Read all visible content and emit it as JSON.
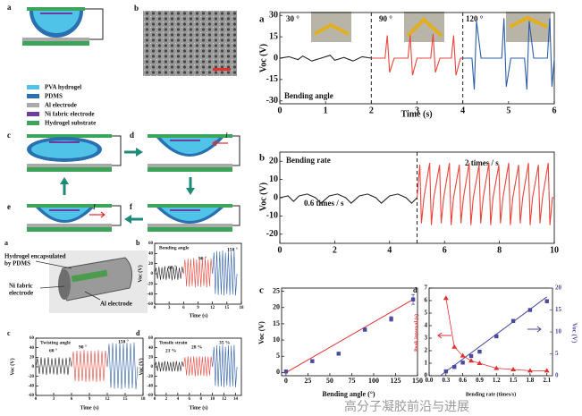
{
  "diagram": {
    "panel_labels": [
      "a",
      "b",
      "c",
      "d",
      "e",
      "f"
    ],
    "legend": [
      "PVA hydrogel",
      "PDMS",
      "Al electrode",
      "Ni fabric electrode",
      "Hydrogel substrate"
    ],
    "current_labels": [
      "I",
      "I"
    ]
  },
  "device": {
    "panel_label": "a",
    "encapsulation": [
      "Hydrogel encapsulated",
      "by PDMS"
    ],
    "ni_label": [
      "Ni fabric",
      "electrode"
    ],
    "al_label": "Al electrode"
  },
  "watermark": "高分子凝胶前沿与进展",
  "chart_data": [
    {
      "type": "line",
      "panel_label": "a",
      "ylabel": "Voc (V)",
      "xlabel": "Time (s)",
      "notes": [
        "30 °",
        "90 °",
        "120 °",
        "Bending angle"
      ],
      "xlim": [
        0,
        6
      ],
      "ylim": [
        -32,
        32
      ],
      "xticks": [
        0,
        1,
        2,
        3,
        4,
        5,
        6
      ],
      "yticks": [
        30,
        15,
        0,
        -15,
        -30
      ],
      "dividers": [
        2,
        4
      ],
      "series": [
        {
          "color": "#222222",
          "x": [
            0,
            0.2,
            0.4,
            0.5,
            0.7,
            0.9,
            1.1,
            1.2,
            1.4,
            1.6,
            1.8,
            2
          ],
          "values": [
            0,
            1,
            -1,
            1.5,
            -2,
            0,
            2,
            -1.5,
            0.5,
            -2,
            1,
            0
          ]
        },
        {
          "color": "#e8453c",
          "x": [
            2,
            2.3,
            2.35,
            2.4,
            2.5,
            2.8,
            2.85,
            2.9,
            3,
            3.3,
            3.35,
            3.4,
            3.5,
            3.75,
            3.8,
            3.85,
            3.95,
            4
          ],
          "values": [
            0,
            0,
            16,
            -10,
            0,
            0,
            16,
            -12,
            0,
            0,
            17,
            -10,
            0,
            0,
            16,
            -12,
            0,
            0
          ]
        },
        {
          "color": "#2f5fa8",
          "x": [
            4,
            4.2,
            4.25,
            4.3,
            4.4,
            4.85,
            4.9,
            4.95,
            5.05,
            5.35,
            5.4,
            5.45,
            5.55,
            5.85,
            5.9,
            5.95,
            6
          ],
          "values": [
            0,
            0,
            -22,
            26,
            0,
            0,
            28,
            -20,
            0,
            0,
            -22,
            26,
            0,
            0,
            28,
            -20,
            0
          ]
        }
      ]
    },
    {
      "type": "line",
      "panel_label": "b",
      "ylabel": "Voc (V)",
      "notes": [
        "Bending rate",
        "0.6 times / s",
        "2 times / s"
      ],
      "xlim": [
        0,
        10
      ],
      "ylim": [
        -25,
        25
      ],
      "xticks": [
        0,
        2,
        4,
        6,
        8,
        10
      ],
      "yticks": [
        20,
        10,
        0,
        -10,
        -20
      ],
      "dividers": [
        5
      ],
      "series": [
        {
          "color": "#222222",
          "x": [
            0,
            0.3,
            0.5,
            0.7,
            1,
            1.3,
            1.5,
            1.8,
            2.1,
            2.4,
            2.6,
            2.9,
            3.2,
            3.5,
            3.7,
            4,
            4.3,
            4.6,
            4.8,
            5
          ],
          "values": [
            0,
            1,
            -2,
            1,
            2,
            0,
            -3,
            1,
            2,
            0,
            -3,
            1,
            2,
            0,
            -3,
            1,
            2,
            0,
            -3,
            0
          ]
        },
        {
          "color": "#e8453c",
          "x": [
            5,
            5.1,
            5.16,
            5.25,
            5.46,
            5.52,
            5.61,
            5.82,
            5.88,
            5.97,
            6.18,
            6.24,
            6.33,
            6.54,
            6.6,
            6.69,
            6.9,
            6.96,
            7.05,
            7.26,
            7.32,
            7.41,
            7.62,
            7.68,
            7.77,
            7.98,
            8.04,
            8.13,
            8.34,
            8.4,
            8.49,
            8.7,
            8.76,
            8.85,
            9.06,
            9.12,
            9.21,
            9.42,
            9.48,
            9.57,
            9.78,
            9.84,
            9.93,
            10
          ],
          "values": [
            0,
            18,
            -14,
            0,
            19,
            -15,
            0,
            18,
            -14,
            0,
            19,
            -15,
            0,
            18,
            -14,
            0,
            19,
            -15,
            0,
            18,
            -14,
            0,
            19,
            -15,
            0,
            18,
            -14,
            0,
            19,
            -15,
            0,
            18,
            -14,
            0,
            19,
            -15,
            0,
            18,
            -14,
            0,
            19,
            -15,
            0,
            0
          ]
        }
      ]
    },
    {
      "type": "scatter",
      "panel_label": "c",
      "ylabel": "Voc (V)",
      "xlabel": "Bending angle (°)",
      "xlim": [
        -5,
        150
      ],
      "ylim": [
        -1,
        26
      ],
      "xticks": [
        0,
        25,
        50,
        75,
        100,
        125,
        150
      ],
      "yticks": [
        0,
        5,
        10,
        15,
        20,
        25
      ],
      "series": [
        {
          "color": "#4a4aa0",
          "x": [
            0,
            30,
            60,
            90,
            120,
            145
          ],
          "values": [
            0.3,
            3.5,
            5.8,
            13.2,
            16.5,
            22.5
          ],
          "errors": [
            0.3,
            0.4,
            0.4,
            0.5,
            0.7,
            1.5
          ]
        }
      ],
      "fit": {
        "color": "#e03030",
        "x": [
          0,
          145
        ],
        "values": [
          0,
          22.5
        ]
      }
    },
    {
      "type": "dual",
      "panel_label": "d",
      "ylabel": "Peak interval (s)",
      "y2label": "Voc (V)",
      "xlabel": "Bending rate (times/s)",
      "xlim": [
        0,
        2.2
      ],
      "ylim": [
        0,
        7
      ],
      "y2lim": [
        0,
        20
      ],
      "xticks": [
        {
          "value": 0,
          "label": "0.0"
        },
        0.3,
        0.6,
        0.9,
        1.2,
        1.5,
        1.8,
        2.1
      ],
      "yticks": [
        0,
        1,
        2,
        3,
        4,
        5,
        6,
        7
      ],
      "y2ticks": [
        0,
        5,
        10,
        15,
        20
      ],
      "series": [
        {
          "color": "#e03030",
          "x": [
            0.3,
            0.45,
            0.6,
            0.75,
            0.9,
            1.2,
            1.5,
            1.8,
            2.1
          ],
          "values": [
            6.2,
            2.3,
            1.6,
            1.2,
            1.0,
            0.6,
            0.5,
            0.4,
            0.4
          ]
        },
        {
          "color": "#4a4aa0",
          "axis": "y2",
          "x": [
            0.3,
            0.45,
            0.6,
            0.75,
            0.9,
            1.2,
            1.5,
            1.8,
            2.1
          ],
          "values": [
            1,
            2,
            3,
            4.5,
            5.5,
            9,
            12.5,
            15,
            17
          ]
        }
      ],
      "fit": {
        "color": "#4a4aa0",
        "axis": "y2",
        "x": [
          0.2,
          2.1
        ],
        "values": [
          0,
          18
        ]
      }
    },
    {
      "type": "line",
      "panel_label": "b",
      "ylabel": "Voc (V)",
      "xlabel": "Time (s)",
      "notes": [
        "Bending angle",
        "60 °",
        "90 °",
        "150 °"
      ],
      "xlim": [
        0,
        18
      ],
      "ylim": [
        -60,
        60
      ],
      "xticks": [
        0,
        3,
        6,
        9,
        12,
        15,
        18
      ],
      "yticks": [
        60,
        40,
        20,
        0,
        -20,
        -40,
        -60
      ],
      "series": [
        {
          "color": "#222222",
          "x": [
            0,
            0.3,
            0.6,
            0.9,
            1.2,
            1.5,
            1.8,
            2.1,
            2.4,
            2.7,
            3,
            3.3,
            3.6,
            3.9,
            4.2,
            4.5,
            4.8,
            5.1,
            5.4,
            5.7,
            6
          ],
          "values": [
            0,
            12,
            -10,
            14,
            -12,
            13,
            -11,
            15,
            -12,
            12,
            -10,
            14,
            -13,
            13,
            -11,
            15,
            -12,
            12,
            -10,
            14,
            0
          ]
        },
        {
          "color": "#e8453c",
          "x": [
            6,
            6.3,
            6.6,
            6.9,
            7.2,
            7.5,
            7.8,
            8.1,
            8.4,
            8.7,
            9,
            9.3,
            9.6,
            9.9,
            10.2,
            10.5,
            10.8,
            11.1,
            11.4,
            11.7,
            12
          ],
          "values": [
            0,
            28,
            -25,
            30,
            -26,
            29,
            -24,
            31,
            -27,
            28,
            -25,
            30,
            -26,
            29,
            -24,
            31,
            -27,
            28,
            -25,
            30,
            0
          ]
        },
        {
          "color": "#2f5fa8",
          "x": [
            12,
            12.3,
            12.6,
            12.9,
            13.2,
            13.5,
            13.8,
            14.1,
            14.4,
            14.7,
            15,
            15.3,
            15.6,
            15.9,
            16.2,
            16.5,
            16.8,
            17.1
          ],
          "values": [
            0,
            42,
            -40,
            45,
            -42,
            44,
            -41,
            46,
            -43,
            42,
            -40,
            45,
            -42,
            44,
            -41,
            46,
            -43,
            0
          ]
        }
      ]
    },
    {
      "type": "line",
      "panel_label": "c",
      "ylabel": "Voc (V)",
      "xlabel": "Time (s)",
      "notes": [
        "Twisting angle",
        "60 °",
        "90 °",
        "150 °"
      ],
      "xlim": [
        0,
        18
      ],
      "ylim": [
        -60,
        60
      ],
      "xticks": [
        0,
        3,
        6,
        9,
        12,
        15,
        18
      ],
      "yticks": [
        60,
        40,
        20,
        0,
        -20,
        -40,
        -60
      ],
      "series": [
        {
          "color": "#222222",
          "x": [
            0,
            0.3,
            0.6,
            0.9,
            1.2,
            1.5,
            1.8,
            2.1,
            2.4,
            2.7,
            3,
            3.3,
            3.6,
            3.9,
            4.2,
            4.5,
            4.8,
            5.1,
            5.4,
            5.7,
            6
          ],
          "values": [
            0,
            18,
            -15,
            20,
            -16,
            19,
            -17,
            20,
            -15,
            18,
            -16,
            19,
            -17,
            20,
            -15,
            18,
            -16,
            19,
            -17,
            20,
            0
          ]
        },
        {
          "color": "#e8453c",
          "x": [
            6,
            6.3,
            6.6,
            6.9,
            7.2,
            7.5,
            7.8,
            8.1,
            8.4,
            8.7,
            9,
            9.3,
            9.6,
            9.9,
            10.2,
            10.5,
            10.8,
            11.1,
            11.4,
            11.7,
            12
          ],
          "values": [
            0,
            32,
            -30,
            34,
            -31,
            33,
            -30,
            35,
            -32,
            33,
            -31,
            34,
            -30,
            33,
            -32,
            35,
            -31,
            33,
            -30,
            34,
            0
          ]
        },
        {
          "color": "#2f5fa8",
          "x": [
            12,
            12.3,
            12.6,
            12.9,
            13.2,
            13.5,
            13.8,
            14.1,
            14.4,
            14.7,
            15,
            15.3,
            15.6,
            15.9,
            16.2,
            16.5,
            16.8,
            17.1
          ],
          "values": [
            0,
            48,
            -44,
            50,
            -46,
            49,
            -45,
            51,
            -47,
            48,
            -44,
            50,
            -46,
            49,
            -45,
            51,
            -47,
            0
          ]
        }
      ]
    },
    {
      "type": "line",
      "panel_label": "d",
      "ylabel": "Voc (V)",
      "xlabel": "Time (s)",
      "notes": [
        "Tensile strain",
        "21 %",
        "28 %",
        "35 %"
      ],
      "xlim": [
        0,
        15
      ],
      "ylim": [
        -60,
        60
      ],
      "xticks": [
        0,
        2,
        4,
        6,
        8,
        10,
        12,
        14
      ],
      "yticks": [
        60,
        40,
        20,
        0,
        -20,
        -40,
        -60
      ],
      "series": [
        {
          "color": "#222222",
          "x": [
            0,
            0.25,
            0.5,
            0.75,
            1,
            1.25,
            1.5,
            1.75,
            2,
            2.25,
            2.5,
            2.75,
            3,
            3.25,
            3.5,
            3.75,
            4,
            4.25,
            4.5,
            4.75,
            5
          ],
          "values": [
            0,
            10,
            -9,
            11,
            -10,
            10,
            -9,
            12,
            -10,
            11,
            -9,
            10,
            -10,
            11,
            -9,
            12,
            -10,
            10,
            -9,
            11,
            0
          ]
        },
        {
          "color": "#e8453c",
          "x": [
            5,
            5.25,
            5.5,
            5.75,
            6,
            6.25,
            6.5,
            6.75,
            7,
            7.25,
            7.5,
            7.75,
            8,
            8.25,
            8.5,
            8.75,
            9,
            9.25,
            9.5,
            9.75,
            10
          ],
          "values": [
            0,
            20,
            -18,
            22,
            -19,
            21,
            -18,
            22,
            -20,
            21,
            -19,
            22,
            -18,
            21,
            -19,
            22,
            -20,
            21,
            -18,
            22,
            0
          ]
        },
        {
          "color": "#2f5fa8",
          "x": [
            10,
            10.25,
            10.5,
            10.75,
            11,
            11.25,
            11.5,
            11.75,
            12,
            12.25,
            12.5,
            12.75,
            13,
            13.25,
            13.5,
            13.75,
            14,
            14.25
          ],
          "values": [
            0,
            42,
            -40,
            45,
            -42,
            44,
            -41,
            46,
            -43,
            42,
            -40,
            45,
            -42,
            44,
            -41,
            46,
            -43,
            0
          ]
        }
      ]
    }
  ]
}
